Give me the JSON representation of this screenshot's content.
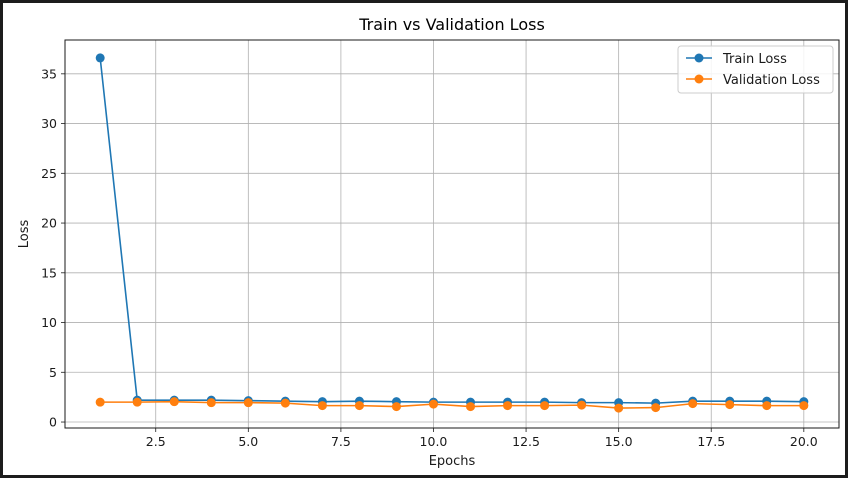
{
  "chart_data": {
    "type": "line",
    "title": "Train vs Validation Loss",
    "xlabel": "Epochs",
    "ylabel": "Loss",
    "xlim": [
      0.05,
      20.95
    ],
    "ylim": [
      -0.6,
      38.4
    ],
    "xticks": [
      2.5,
      5.0,
      7.5,
      10.0,
      12.5,
      15.0,
      17.5,
      20.0
    ],
    "xtick_labels": [
      "2.5",
      "5.0",
      "7.5",
      "10.0",
      "12.5",
      "15.0",
      "17.5",
      "20.0"
    ],
    "yticks": [
      0,
      5,
      10,
      15,
      20,
      25,
      30,
      35
    ],
    "ytick_labels": [
      "0",
      "5",
      "10",
      "15",
      "20",
      "25",
      "30",
      "35"
    ],
    "grid": true,
    "legend_position": "top-right",
    "x": [
      1,
      2,
      3,
      4,
      5,
      6,
      7,
      8,
      9,
      10,
      11,
      12,
      13,
      14,
      15,
      16,
      17,
      18,
      19,
      20
    ],
    "series": [
      {
        "name": "Train Loss",
        "color": "#1f77b4",
        "values": [
          36.6,
          2.2,
          2.2,
          2.2,
          2.15,
          2.1,
          2.05,
          2.1,
          2.05,
          2.0,
          2.0,
          2.0,
          2.0,
          1.95,
          1.95,
          1.9,
          2.1,
          2.1,
          2.1,
          2.05
        ]
      },
      {
        "name": "Validation Loss",
        "color": "#ff7f0e",
        "values": [
          2.0,
          2.0,
          2.05,
          1.95,
          1.95,
          1.9,
          1.65,
          1.65,
          1.55,
          1.8,
          1.55,
          1.65,
          1.65,
          1.7,
          1.4,
          1.45,
          1.85,
          1.75,
          1.65,
          1.65
        ]
      }
    ]
  }
}
